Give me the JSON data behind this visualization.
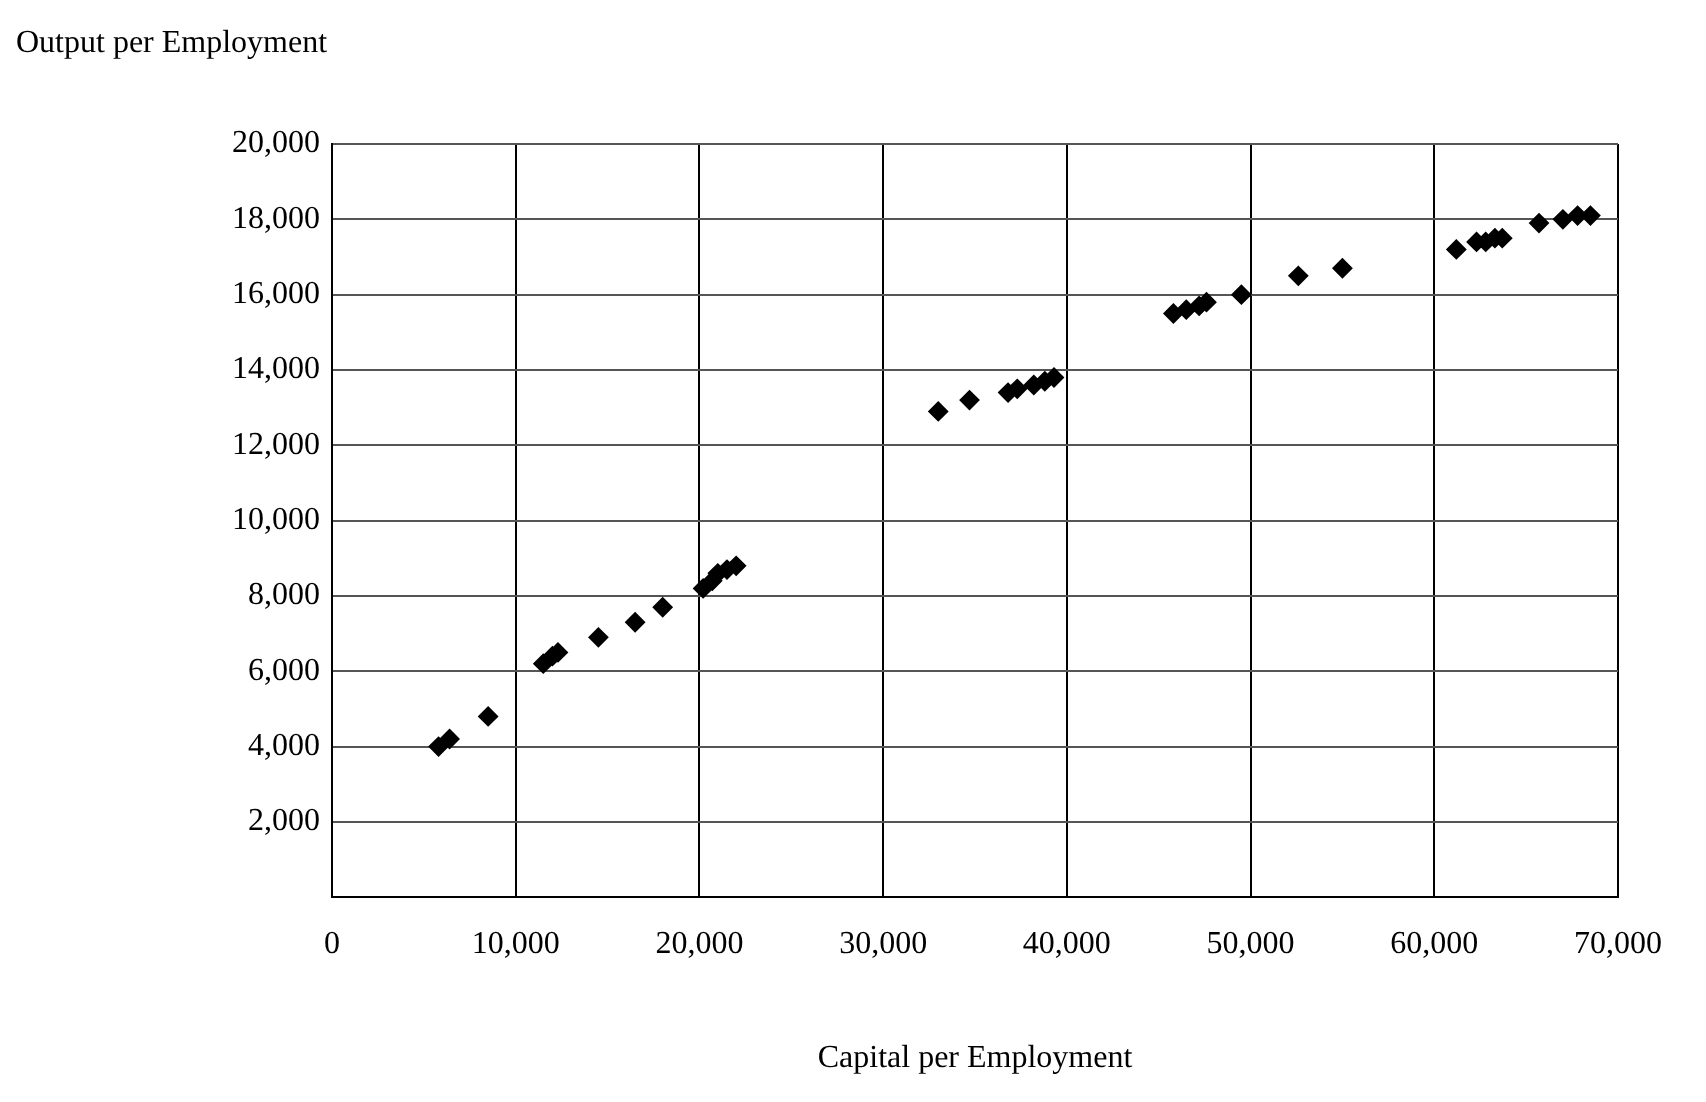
{
  "chart_data": {
    "type": "scatter",
    "xlabel": "Capital per Employment",
    "ylabel": "Output per Employment",
    "x": [
      5800,
      6400,
      8500,
      11500,
      12000,
      12300,
      14500,
      16500,
      18000,
      20200,
      20700,
      21000,
      21500,
      22000,
      33000,
      34700,
      36800,
      37300,
      38200,
      38800,
      39300,
      45800,
      46500,
      47200,
      47600,
      49500,
      52600,
      55000,
      61200,
      62300,
      62800,
      63300,
      63700,
      65700,
      67000,
      67800,
      68500
    ],
    "series": [
      {
        "color": "#000000",
        "values": [
          4000,
          4200,
          4800,
          6200,
          6400,
          6500,
          6900,
          7300,
          7700,
          8200,
          8400,
          8600,
          8700,
          8800,
          12900,
          13200,
          13400,
          13500,
          13600,
          13700,
          13800,
          15500,
          15600,
          15700,
          15800,
          16000,
          16500,
          16700,
          17200,
          17400,
          17400,
          17500,
          17500,
          17900,
          18000,
          18100,
          18100
        ]
      }
    ],
    "xlim": [
      0,
      70000
    ],
    "xticks": [
      {
        "value": 0,
        "label": "0"
      },
      {
        "value": 10000,
        "label": "10,000"
      },
      {
        "value": 20000,
        "label": "20,000"
      },
      {
        "value": 30000,
        "label": "30,000"
      },
      {
        "value": 40000,
        "label": "40,000"
      },
      {
        "value": 50000,
        "label": "50,000"
      },
      {
        "value": 60000,
        "label": "60,000"
      },
      {
        "value": 70000,
        "label": "70,000"
      }
    ],
    "ylim": [
      0,
      20000
    ],
    "yticks": [
      {
        "value": 2000,
        "label": "2,000"
      },
      {
        "value": 4000,
        "label": "4,000"
      },
      {
        "value": 6000,
        "label": "6,000"
      },
      {
        "value": 8000,
        "label": "8,000"
      },
      {
        "value": 10000,
        "label": "10,000"
      },
      {
        "value": 12000,
        "label": "12,000"
      },
      {
        "value": 14000,
        "label": "14,000"
      },
      {
        "value": 16000,
        "label": "16,000"
      },
      {
        "value": 18000,
        "label": "18,000"
      },
      {
        "value": 20000,
        "label": "20,000"
      }
    ],
    "grid": true,
    "legend": false,
    "marker": "diamond"
  }
}
